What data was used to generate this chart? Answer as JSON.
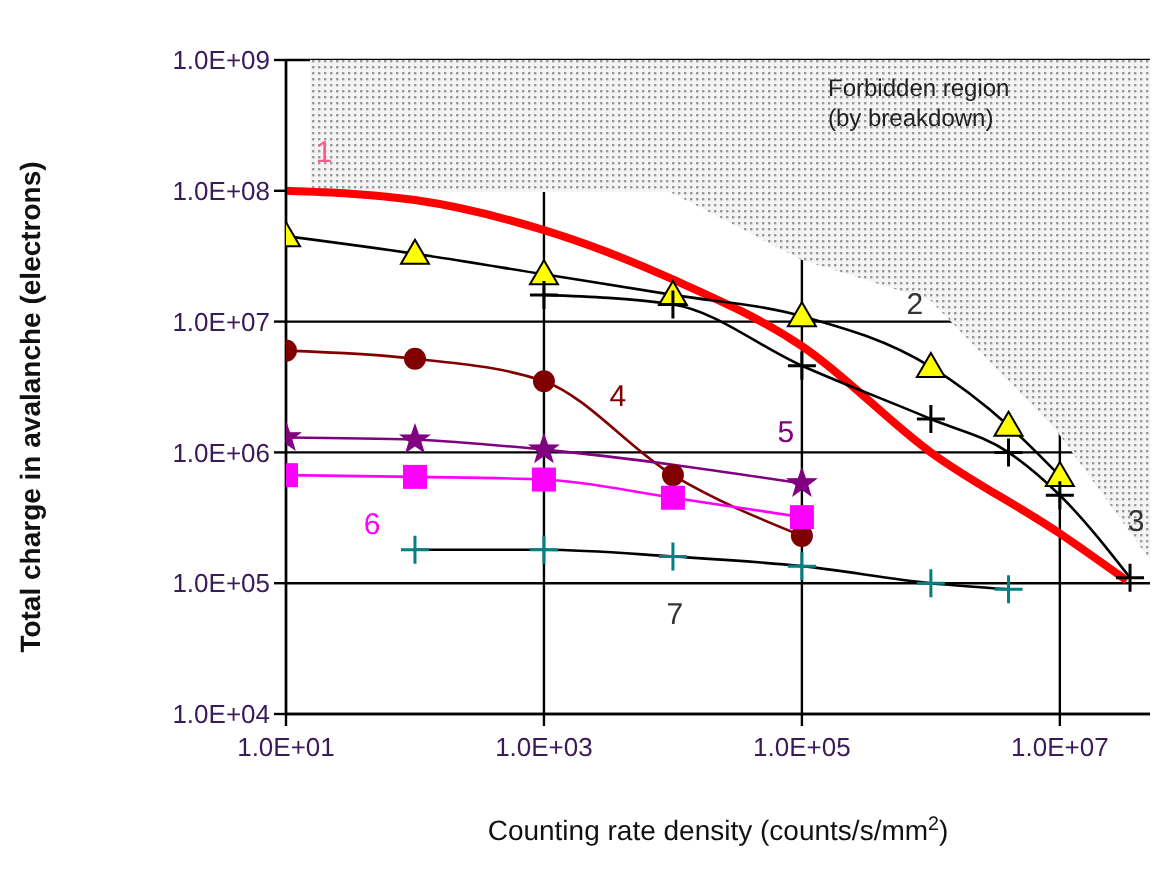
{
  "chart_data": {
    "type": "line",
    "xlabel": "Counting rate density (counts/s/mm$^{2}$)",
    "ylabel": "Total charge in avalanche (electrons)",
    "log": "xy",
    "grid": true,
    "xlim": [
      10,
      50000000
    ],
    "xticks": [
      {
        "value": 10,
        "label": "1.0E+01"
      },
      {
        "value": 1000,
        "label": "1.0E+03"
      },
      {
        "value": 100000,
        "label": "1.0E+05"
      },
      {
        "value": 10000000,
        "label": "1.0E+07"
      }
    ],
    "ylim": [
      10000,
      1000000000
    ],
    "yticks": [
      {
        "value": 10000,
        "label": "1.0E+04"
      },
      {
        "value": 100000,
        "label": "1.0E+05"
      },
      {
        "value": 1000000,
        "label": "1.0E+06"
      },
      {
        "value": 10000000,
        "label": "1.0E+07"
      },
      {
        "value": 100000000,
        "label": "1.0E+08"
      },
      {
        "value": 1000000000,
        "label": "1.0E+09"
      }
    ],
    "series": [
      {
        "name": "1",
        "color": "#ff0000",
        "marker": "none",
        "x": [
          10,
          100,
          1000,
          10000,
          100000,
          1000000,
          10000000,
          33000000
        ],
        "values": [
          100000000,
          85000000,
          50000000,
          21000000,
          6500000,
          1000000,
          240000,
          105000
        ]
      },
      {
        "name": "2",
        "color": "#000000",
        "marker": "none",
        "x": [
          10,
          100,
          1000,
          10000,
          100000,
          1000000,
          4000000,
          10000000
        ],
        "values": [
          45000000,
          33000000,
          23000000,
          16000000,
          11000000,
          4500000,
          1600000,
          660000
        ]
      },
      {
        "type": "scatter",
        "color": "#ffff00",
        "marker": "triangle",
        "x": [
          10,
          100,
          1000,
          10000,
          100000,
          1000000,
          4000000,
          10000000
        ],
        "values": [
          45000000,
          33000000,
          23000000,
          16000000,
          11000000,
          4500000,
          1600000,
          660000
        ]
      },
      {
        "name": "3",
        "color": "#000000",
        "marker": "cross",
        "x": [
          1000,
          10000,
          100000,
          1000000,
          4000000,
          10000000,
          35000000
        ],
        "values": [
          16000000,
          13500000,
          4600000,
          1800000,
          1000000,
          470000,
          110000
        ]
      },
      {
        "name": "4",
        "color": "#800000",
        "marker": "circle",
        "x": [
          10,
          100,
          1000,
          10000,
          100000
        ],
        "values": [
          6000000,
          5200000,
          3500000,
          670000,
          230000
        ]
      },
      {
        "name": "5",
        "color": "#800080",
        "marker": "star",
        "x": [
          10,
          100,
          1000,
          100000
        ],
        "values": [
          1300000,
          1250000,
          1050000,
          580000
        ]
      },
      {
        "name": "6",
        "color": "#ff00ff",
        "marker": "square",
        "x": [
          10,
          100,
          1000,
          10000,
          100000
        ],
        "values": [
          670000,
          650000,
          620000,
          450000,
          320000
        ]
      },
      {
        "name": "7",
        "color": "#000000",
        "marker": "none",
        "x": [
          100,
          1000,
          10000,
          100000,
          1000000,
          4000000
        ],
        "values": [
          180000,
          180000,
          160000,
          135000,
          100000,
          90000
        ]
      },
      {
        "type": "scatter",
        "color": "#008080",
        "marker": "cross",
        "x": [
          100,
          1000,
          10000,
          100000,
          1000000,
          4000000
        ],
        "values": [
          180000,
          180000,
          160000,
          135000,
          100000,
          90000
        ]
      }
    ],
    "annotations": [
      "Forbidden region\n(by breakdown)"
    ]
  }
}
